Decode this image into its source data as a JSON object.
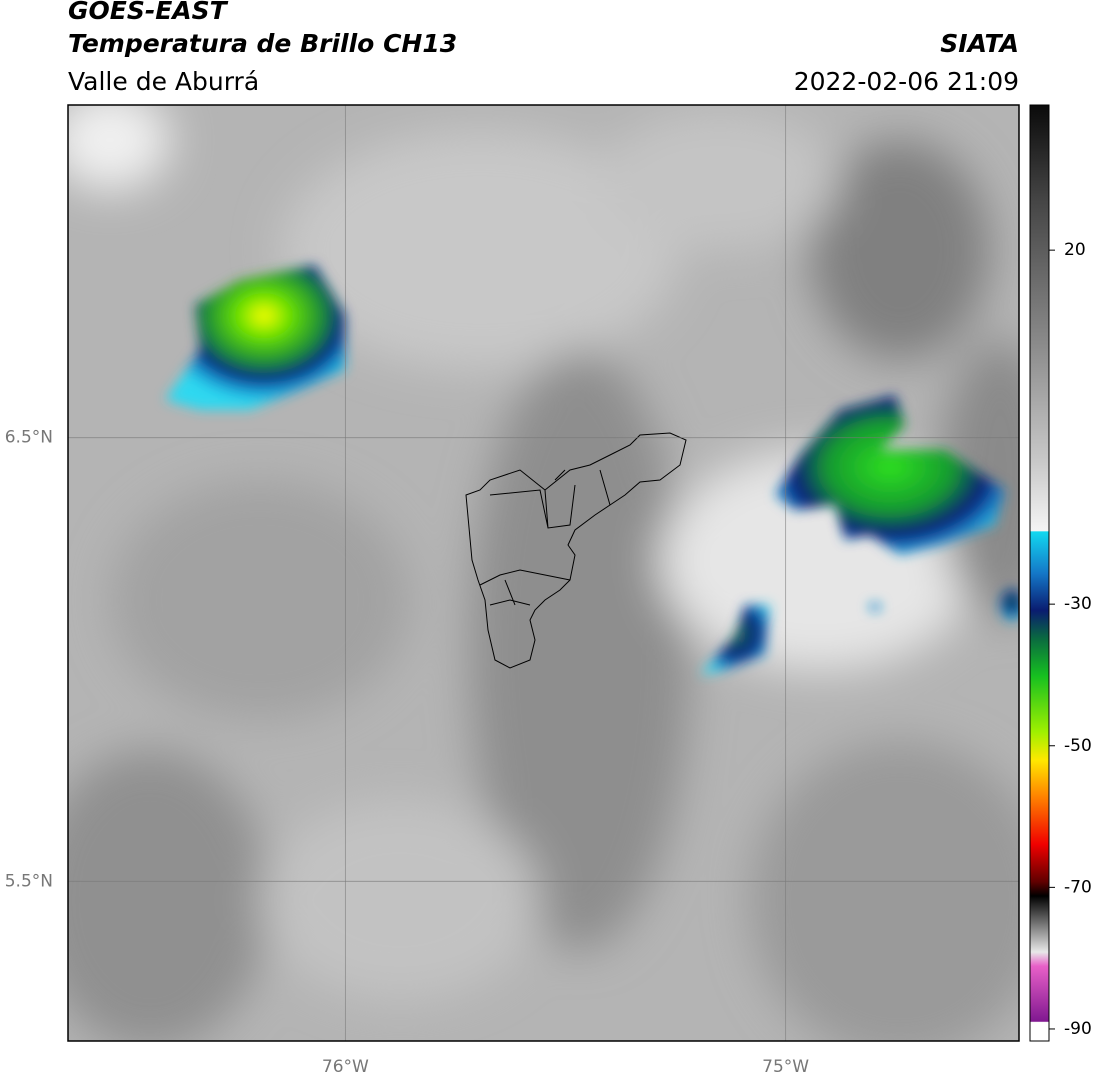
{
  "header": {
    "title": "GOES-EAST",
    "subtitle": "Temperatura de Brillo CH13",
    "region": "Valle de Aburrá",
    "source": "SIATA",
    "datetime": "2022-02-06 21:09"
  },
  "map": {
    "lonlim": [
      -76.63,
      -74.47
    ],
    "latlim": [
      5.14,
      7.25
    ],
    "lon_ticks": [
      {
        "value": -76,
        "label": "76°W"
      },
      {
        "value": -75,
        "label": "75°W"
      }
    ],
    "lat_ticks": [
      {
        "value": 6.5,
        "label": "6.5°N"
      },
      {
        "value": 5.5,
        "label": "5.5°N"
      }
    ]
  },
  "colorbar": {
    "lim": [
      -91.7,
      40.5
    ],
    "ticks": [
      20,
      -30,
      -50,
      -70,
      -90
    ]
  }
}
